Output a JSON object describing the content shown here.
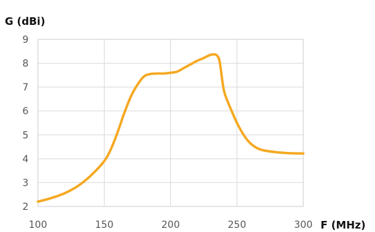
{
  "chart_data": {
    "type": "line",
    "title": "",
    "xlabel": "F (MHz)",
    "ylabel": "G (dBi)",
    "xlim": [
      100,
      300
    ],
    "ylim": [
      2,
      9
    ],
    "x_ticks": [
      100,
      150,
      200,
      250,
      300
    ],
    "y_ticks": [
      2,
      3,
      4,
      5,
      6,
      7,
      8,
      9
    ],
    "x_tick_labels": [
      "100",
      "150",
      "200",
      "250",
      "300"
    ],
    "y_tick_labels": [
      "2",
      "3",
      "4",
      "5",
      "6",
      "7",
      "8",
      "9"
    ],
    "grid": true,
    "legend": "none",
    "colors": {
      "series": "#f5a820",
      "grid": "#d9d9d9",
      "frame": "#cccccc"
    },
    "series": [
      {
        "x": [
          100,
          110,
          120,
          130,
          140,
          150,
          155,
          160,
          165,
          170,
          175,
          180,
          185,
          190,
          195,
          200,
          205,
          210,
          215,
          220,
          225,
          230,
          233,
          235,
          237,
          240,
          243,
          246,
          250,
          255,
          260,
          265,
          270,
          280,
          290,
          300
        ],
        "values": [
          2.2,
          2.35,
          2.55,
          2.85,
          3.3,
          3.9,
          4.4,
          5.1,
          5.9,
          6.6,
          7.1,
          7.45,
          7.55,
          7.57,
          7.57,
          7.6,
          7.65,
          7.8,
          7.95,
          8.1,
          8.22,
          8.35,
          8.37,
          8.32,
          8.05,
          6.9,
          6.4,
          6.0,
          5.5,
          5.0,
          4.65,
          4.45,
          4.35,
          4.27,
          4.23,
          4.22
        ]
      }
    ]
  }
}
